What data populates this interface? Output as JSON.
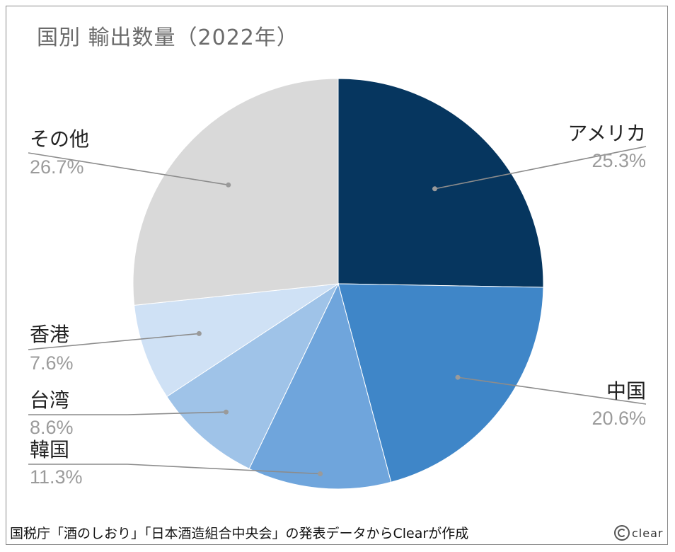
{
  "chart_data": {
    "type": "pie",
    "title": "国別 輸出数量（2022年）",
    "slices": [
      {
        "label": "アメリカ",
        "value": 25.3,
        "value_label": "25.3%",
        "color": "#06365f"
      },
      {
        "label": "中国",
        "value": 20.6,
        "value_label": "20.6%",
        "color": "#3f86c8"
      },
      {
        "label": "韓国",
        "value": 11.3,
        "value_label": "11.3%",
        "color": "#6fa5dc"
      },
      {
        "label": "台湾",
        "value": 8.6,
        "value_label": "8.6%",
        "color": "#9fc3e8"
      },
      {
        "label": "香港",
        "value": 7.6,
        "value_label": "7.6%",
        "color": "#cfe1f5"
      },
      {
        "label": "その他",
        "value": 26.7,
        "value_label": "26.7%",
        "color": "#d9d9d9"
      }
    ],
    "start": "12 o'clock",
    "direction": "clockwise",
    "legend": "none (leader-line labels)"
  },
  "footer": {
    "source": "国税庁「酒のしおり」「日本酒造組合中央会」の発表データからClearが作成",
    "logo_text": "clear"
  }
}
